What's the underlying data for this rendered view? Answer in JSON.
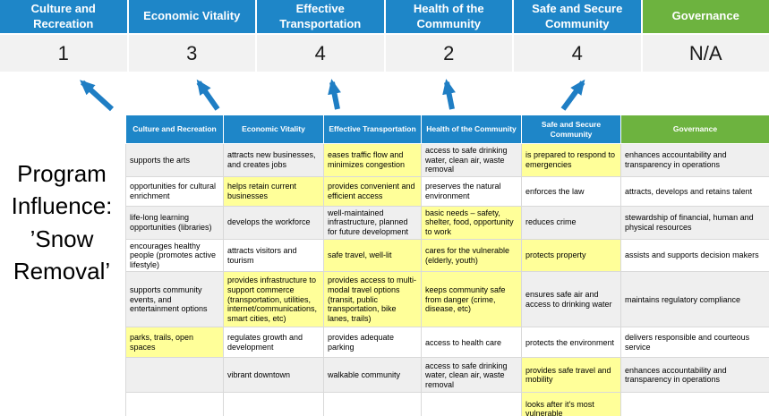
{
  "slide": {
    "program_title_lines": [
      "Program",
      "Influence:",
      "’Snow",
      "Removal’"
    ]
  },
  "banner": {
    "columns": [
      {
        "label_lines": [
          "Culture and",
          "Recreation"
        ],
        "score": "1",
        "theme": "blue"
      },
      {
        "label_lines": [
          "Economic Vitality"
        ],
        "score": "3",
        "theme": "blue"
      },
      {
        "label_lines": [
          "Effective",
          "Transportation"
        ],
        "score": "4",
        "theme": "blue"
      },
      {
        "label_lines": [
          "Health of the",
          "Community"
        ],
        "score": "2",
        "theme": "blue"
      },
      {
        "label_lines": [
          "Safe and Secure",
          "Community"
        ],
        "score": "4",
        "theme": "blue"
      },
      {
        "label_lines": [
          "Governance"
        ],
        "score": "N/A",
        "theme": "green"
      }
    ]
  },
  "matrix": {
    "headers": [
      {
        "label_lines": [
          "Culture and Recreation"
        ],
        "theme": "blue"
      },
      {
        "label_lines": [
          "Economic Vitality"
        ],
        "theme": "blue"
      },
      {
        "label_lines": [
          "Effective Transportation"
        ],
        "theme": "blue"
      },
      {
        "label_lines": [
          "Health of the Community"
        ],
        "theme": "blue"
      },
      {
        "label_lines": [
          "Safe and Secure",
          "Community"
        ],
        "theme": "blue"
      },
      {
        "label_lines": [
          "Governance"
        ],
        "theme": "green"
      }
    ],
    "rows": [
      [
        {
          "text": "supports the arts",
          "highlight": false
        },
        {
          "text": "attracts new businesses, and creates jobs",
          "highlight": false
        },
        {
          "text": "eases traffic flow and minimizes congestion",
          "highlight": true
        },
        {
          "text": "access to safe drinking water, clean air, waste removal",
          "highlight": false
        },
        {
          "text": "is prepared to respond to emergencies",
          "highlight": true
        },
        {
          "text": "enhances accountability and transparency in operations",
          "highlight": false
        }
      ],
      [
        {
          "text": "opportunities for cultural enrichment",
          "highlight": false
        },
        {
          "text": "helps retain current businesses",
          "highlight": true
        },
        {
          "text": "provides convenient and efficient access",
          "highlight": true
        },
        {
          "text": "preserves the natural environment",
          "highlight": false
        },
        {
          "text": "enforces the law",
          "highlight": false
        },
        {
          "text": "attracts, develops and retains talent",
          "highlight": false
        }
      ],
      [
        {
          "text": "life-long learning opportunities (libraries)",
          "highlight": false
        },
        {
          "text": "develops the workforce",
          "highlight": false
        },
        {
          "text": "well-maintained infrastructure, planned for future development",
          "highlight": false
        },
        {
          "text": "basic needs – safety, shelter, food, opportunity to work",
          "highlight": true
        },
        {
          "text": "reduces crime",
          "highlight": false
        },
        {
          "text": "stewardship of financial, human and physical resources",
          "highlight": false
        }
      ],
      [
        {
          "text": "encourages healthy people (promotes active lifestyle)",
          "highlight": false
        },
        {
          "text": "attracts visitors and tourism",
          "highlight": false
        },
        {
          "text": "safe travel, well-lit",
          "highlight": true
        },
        {
          "text": "cares for the vulnerable (elderly, youth)",
          "highlight": true
        },
        {
          "text": "protects property",
          "highlight": true
        },
        {
          "text": "assists and supports decision makers",
          "highlight": false
        }
      ],
      [
        {
          "text": "supports community events, and entertainment options",
          "highlight": false
        },
        {
          "text": "provides infrastructure to support commerce (transportation, utilities, internet/communications, smart cities, etc)",
          "highlight": true
        },
        {
          "text": "provides access to multi-modal travel options (transit, public transportation, bike lanes, trails)",
          "highlight": true
        },
        {
          "text": "keeps community safe from danger (crime, disease, etc)",
          "highlight": true
        },
        {
          "text": "ensures safe air and access to drinking water",
          "highlight": false
        },
        {
          "text": "maintains regulatory compliance",
          "highlight": false
        }
      ],
      [
        {
          "text": "parks, trails, open spaces",
          "highlight": true
        },
        {
          "text": "regulates growth and development",
          "highlight": false
        },
        {
          "text": "provides adequate parking",
          "highlight": false
        },
        {
          "text": "access to health care",
          "highlight": false
        },
        {
          "text": "protects the environment",
          "highlight": false
        },
        {
          "text": "delivers responsible and courteous service",
          "highlight": false
        }
      ],
      [
        {
          "text": "",
          "highlight": false
        },
        {
          "text": "vibrant downtown",
          "highlight": false
        },
        {
          "text": "walkable community",
          "highlight": false
        },
        {
          "text": "access to safe drinking water, clean air, waste removal",
          "highlight": false
        },
        {
          "text": "provides safe travel and mobility",
          "highlight": true
        },
        {
          "text": "enhances accountability and transparency in operations",
          "highlight": false
        }
      ],
      [
        {
          "text": "",
          "highlight": false
        },
        {
          "text": "",
          "highlight": false
        },
        {
          "text": "",
          "highlight": false
        },
        {
          "text": "",
          "highlight": false
        },
        {
          "text": "looks after it's most vulnerable",
          "highlight": true
        },
        {
          "text": "",
          "highlight": false
        }
      ]
    ]
  },
  "colors": {
    "header_blue": "#1E86C8",
    "header_green": "#6DB33F",
    "highlight_yellow": "#FFFF99",
    "score_bg": "#F2F2F2",
    "stripe_gray": "#EFEFEF",
    "arrow_blue": "#1F7EC4"
  }
}
